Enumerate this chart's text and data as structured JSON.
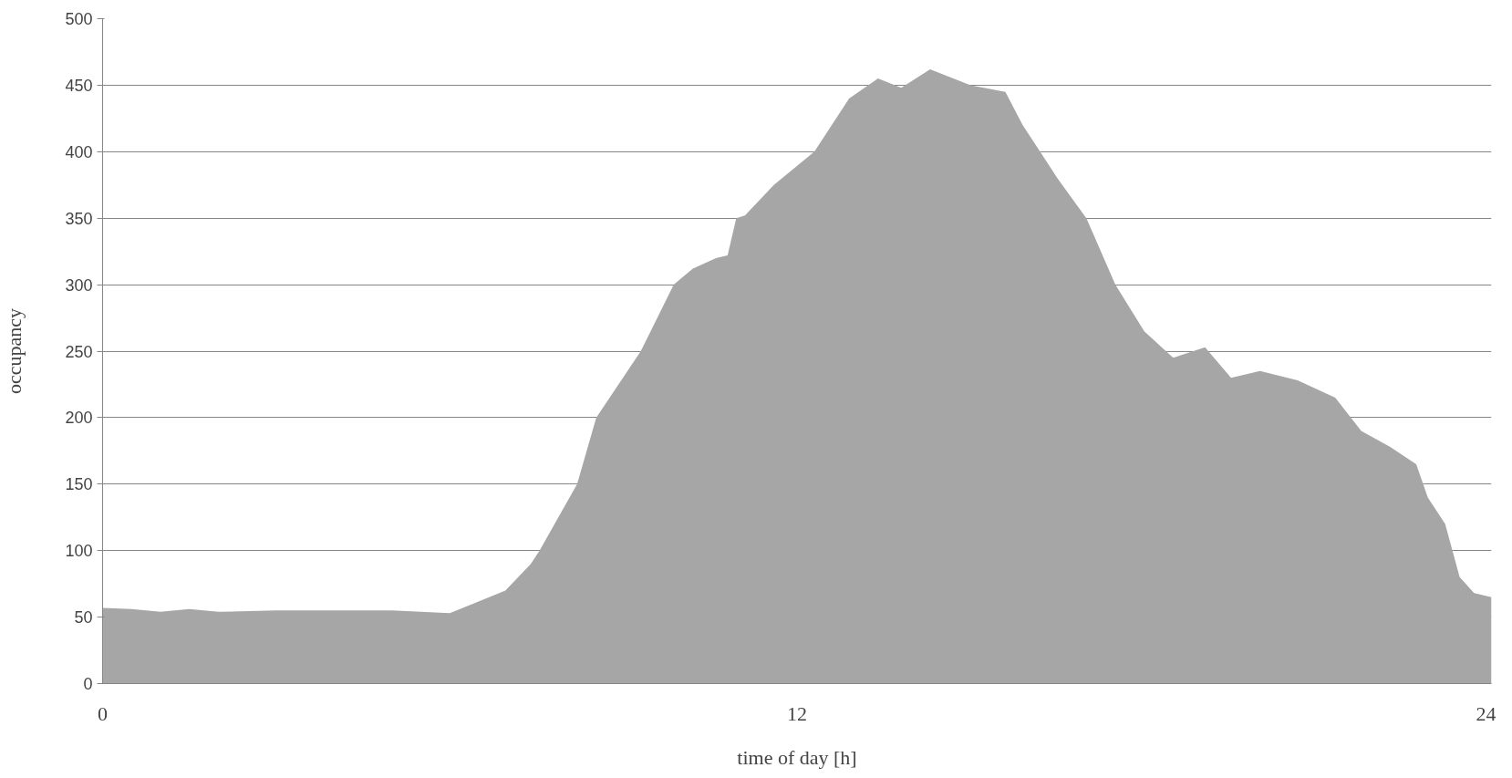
{
  "chart_data": {
    "type": "area",
    "xlabel": "time of day [h]",
    "ylabel": "occupancy",
    "xlim": [
      0,
      24
    ],
    "xticks": [
      0,
      12,
      24
    ],
    "ylim": [
      0,
      500
    ],
    "yticks": [
      0,
      50,
      100,
      150,
      200,
      250,
      300,
      350,
      400,
      450,
      500
    ],
    "grid": "y",
    "series": [
      {
        "color": "#a6a6a6",
        "x": [
          0,
          0.5,
          1,
          1.5,
          2,
          3,
          4,
          5,
          6,
          6.4,
          6.96,
          7.4,
          7.55,
          8.2,
          8.53,
          9.3,
          9.87,
          10.2,
          10.6,
          10.8,
          10.95,
          11.1,
          11.6,
          12.3,
          12.9,
          13.4,
          13.8,
          14.3,
          15.0,
          15.6,
          15.9,
          16.2,
          16.5,
          17.0,
          17.5,
          18.0,
          18.5,
          19.05,
          19.5,
          20.0,
          20.65,
          21.3,
          21.75,
          22.25,
          22.7,
          22.9,
          23.2,
          23.45,
          23.7,
          24
        ],
        "values": [
          57,
          56,
          54,
          56,
          54,
          55,
          55,
          55,
          53,
          60,
          70,
          90,
          100,
          150,
          200,
          250,
          300,
          312,
          320,
          322,
          350,
          352,
          375,
          400,
          440,
          455,
          448,
          462,
          450,
          445,
          420,
          400,
          380,
          350,
          300,
          265,
          245,
          253,
          230,
          235,
          228,
          215,
          190,
          178,
          165,
          140,
          120,
          80,
          68,
          65
        ]
      }
    ]
  }
}
